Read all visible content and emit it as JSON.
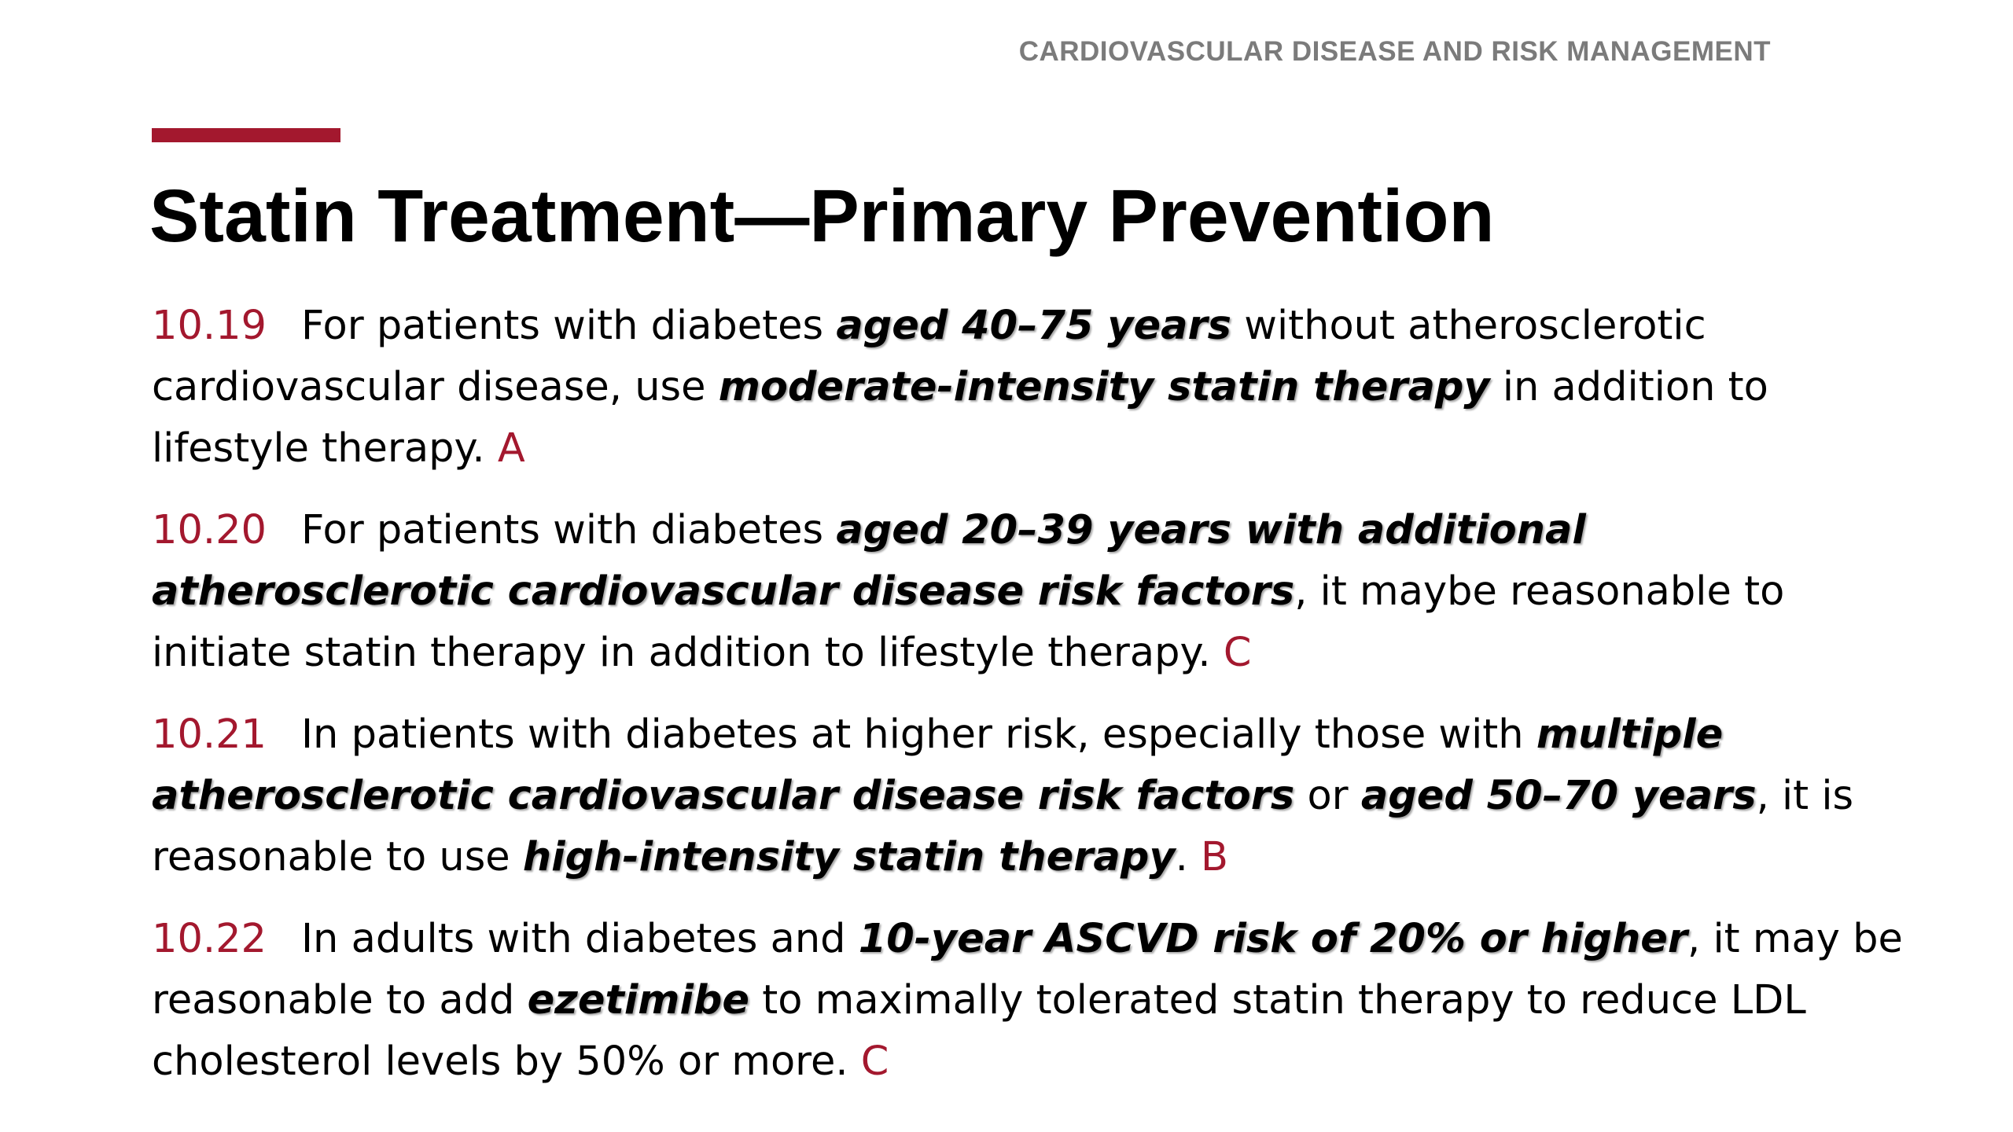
{
  "header": {
    "section_label": "CARDIOVASCULAR DISEASE AND RISK MANAGEMENT"
  },
  "title": "Statin Treatment—Primary Prevention",
  "colors": {
    "accent": "#a3182e",
    "header_text": "#7b7b7b"
  },
  "recommendations": [
    {
      "number": "10.19",
      "segments": [
        {
          "text": "For patients with diabetes ",
          "emphasis": false
        },
        {
          "text": "aged 40–75 years",
          "emphasis": true
        },
        {
          "text": " without atherosclerotic cardiovascular disease, use ",
          "emphasis": false
        },
        {
          "text": "moderate-intensity statin therapy",
          "emphasis": true
        },
        {
          "text": " in addition to lifestyle therapy. ",
          "emphasis": false
        }
      ],
      "grade": "A"
    },
    {
      "number": "10.20",
      "segments": [
        {
          "text": "For patients with diabetes ",
          "emphasis": false
        },
        {
          "text": "aged 20–39 years with additional atherosclerotic cardiovascular disease risk factors",
          "emphasis": true
        },
        {
          "text": ", it maybe reasonable to initiate statin therapy in addition to lifestyle therapy. ",
          "emphasis": false
        }
      ],
      "grade": "C"
    },
    {
      "number": "10.21",
      "segments": [
        {
          "text": "In patients with diabetes at higher risk, especially those with ",
          "emphasis": false
        },
        {
          "text": "multiple atherosclerotic cardiovascular disease risk factors",
          "emphasis": true
        },
        {
          "text": " or ",
          "emphasis": false
        },
        {
          "text": "aged 50–70 years",
          "emphasis": true
        },
        {
          "text": ", it is reasonable to use ",
          "emphasis": false
        },
        {
          "text": "high-intensity statin therapy",
          "emphasis": true
        },
        {
          "text": ". ",
          "emphasis": false
        }
      ],
      "grade": "B"
    },
    {
      "number": "10.22",
      "segments": [
        {
          "text": "In adults with diabetes and ",
          "emphasis": false
        },
        {
          "text": "10-year ASCVD risk of 20% or higher",
          "emphasis": true
        },
        {
          "text": ", it may be reasonable to add ",
          "emphasis": false
        },
        {
          "text": "ezetimibe",
          "emphasis": true
        },
        {
          "text": " to maximally tolerated statin therapy to reduce LDL cholesterol levels by 50% or more. ",
          "emphasis": false
        }
      ],
      "grade": "C"
    }
  ]
}
